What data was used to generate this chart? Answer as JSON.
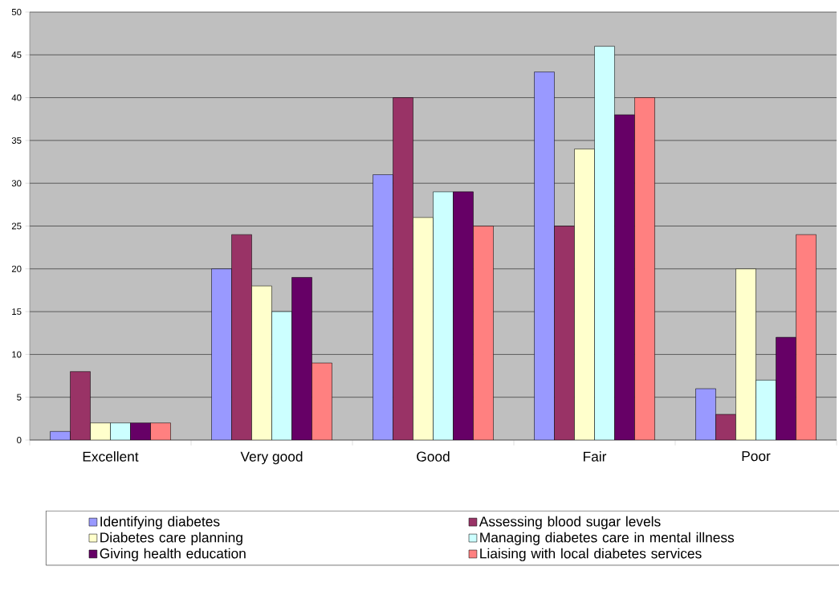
{
  "chart_data": {
    "type": "bar",
    "categories": [
      "Excellent",
      "Very good",
      "Good",
      "Fair",
      "Poor"
    ],
    "series": [
      {
        "name": "Identifying diabetes",
        "color": "#9999ff",
        "values": [
          1,
          20,
          31,
          43,
          6
        ]
      },
      {
        "name": "Assessing blood sugar levels",
        "color": "#993366",
        "values": [
          8,
          24,
          40,
          25,
          3
        ]
      },
      {
        "name": "Diabetes care planning",
        "color": "#ffffcc",
        "values": [
          2,
          18,
          26,
          34,
          20
        ]
      },
      {
        "name": "Managing diabetes care in mental illness",
        "color": "#ccffff",
        "values": [
          2,
          15,
          29,
          46,
          7
        ]
      },
      {
        "name": "Giving health education",
        "color": "#660066",
        "values": [
          2,
          19,
          29,
          38,
          12
        ]
      },
      {
        "name": "Liaising with local diabetes services",
        "color": "#ff8080",
        "values": [
          2,
          9,
          25,
          40,
          24
        ]
      }
    ],
    "ylim": [
      0,
      50
    ],
    "yticks": [
      0,
      5,
      10,
      15,
      20,
      25,
      30,
      35,
      40,
      45,
      50
    ],
    "grid": "y",
    "legend": "bottom"
  }
}
